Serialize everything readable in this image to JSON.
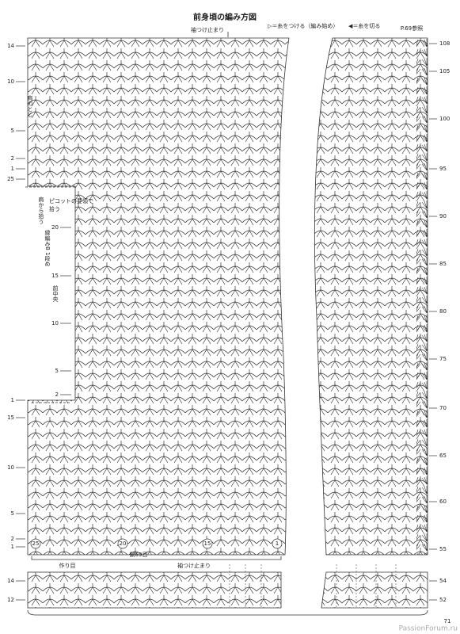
{
  "title": "前身頃の編み方図",
  "legend": [
    "▷＝糸をつける（編み始め）",
    "◀＝糸を切る"
  ],
  "sleeve_stop_top": "袖つけ止まり",
  "see_page": "P.69参照",
  "right_rows": [
    "108",
    "105",
    "100",
    "95",
    "90",
    "85",
    "80",
    "75",
    "70",
    "65",
    "60",
    "55",
    "54",
    "52"
  ],
  "shoulder_rows": [
    "14",
    "10",
    "5",
    "2",
    "1",
    "25"
  ],
  "shoulder_note": "肩のとじ",
  "picot_note": [
    "ピコットの要領で",
    "拾う"
  ],
  "pick_note": "肩から拾う",
  "neck_rows": [
    "20",
    "15",
    "10",
    "5",
    "2"
  ],
  "edging_note": "縁編みB 1段め",
  "center_note": "前中央",
  "lower_rows": [
    "1",
    "15",
    "10",
    "5",
    "2",
    "1"
  ],
  "chain_marks": [
    "25",
    "20",
    "15",
    "1"
  ],
  "chain_count": "鎖69目",
  "foundation": "作り目",
  "sleeve_stop_bottom": "袖つけ止まり",
  "band_rows": [
    "14",
    "12"
  ],
  "page_number": "71",
  "watermark": "PassionForum.ru"
}
